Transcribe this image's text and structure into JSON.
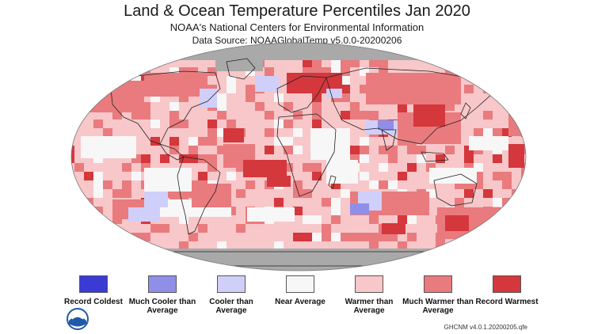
{
  "header": {
    "title": "Land & Ocean Temperature Percentiles Jan 2020",
    "subtitle": "NOAA's National Centers for Environmental Information",
    "source": "Data Source: NOAAGlobalTemp v5.0.0-20200206"
  },
  "legend": {
    "items": [
      {
        "label": "Record Coldest",
        "color": "#3a3ad4"
      },
      {
        "label": "Much Cooler than Average",
        "color": "#8f8fe8"
      },
      {
        "label": "Cooler than Average",
        "color": "#cfcffa"
      },
      {
        "label": "Near Average",
        "color": "#f7f7f7"
      },
      {
        "label": "Warmer than Average",
        "color": "#f8c7c9"
      },
      {
        "label": "Much Warmer than Average",
        "color": "#e97b7e"
      },
      {
        "label": "Record Warmest",
        "color": "#d4373c"
      }
    ]
  },
  "map": {
    "projection": "robinson",
    "colors": {
      "nodata": "#a9a9a9",
      "near": "#f7f7f7",
      "warmer": "#f8c7c9",
      "much_warmer": "#e97b7e",
      "record_warm": "#d4373c",
      "cooler": "#cfcffa",
      "much_cooler": "#8f8fe8",
      "outline": "#222222"
    }
  },
  "footer": {
    "logo": "noaa-logo",
    "credit": "GHCNM v4.0.1.20200205.qfe"
  }
}
